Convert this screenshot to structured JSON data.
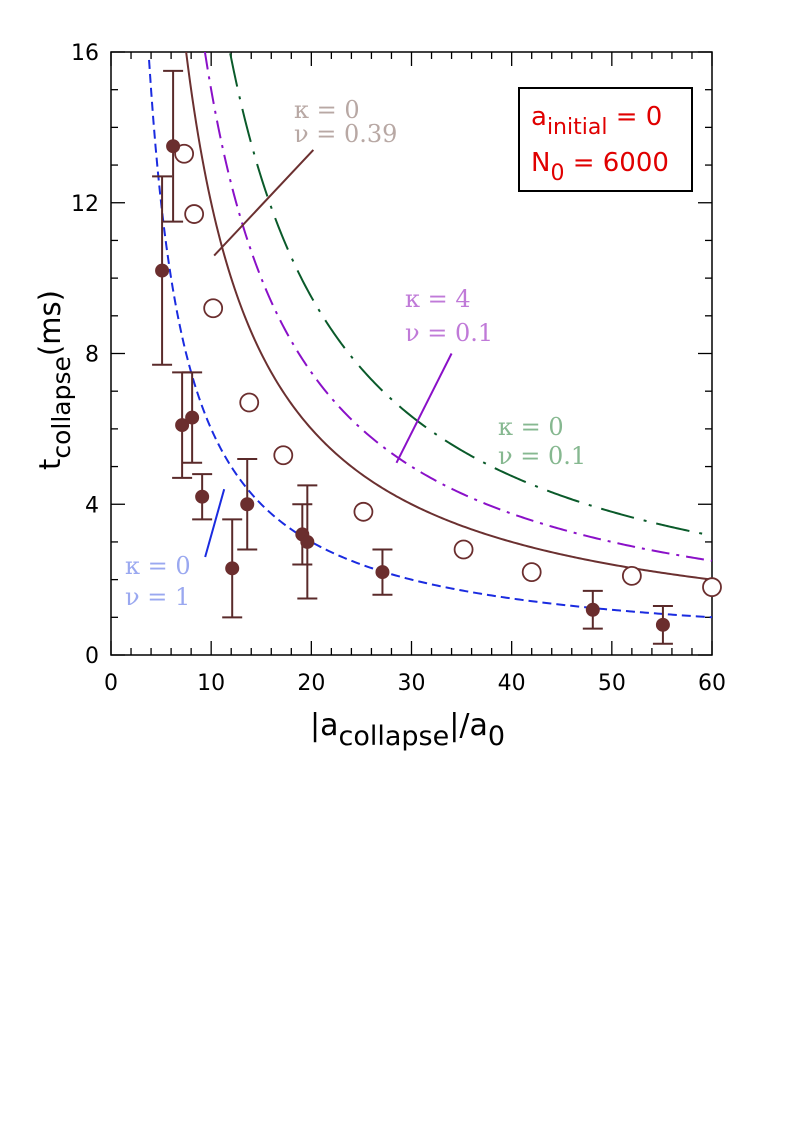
{
  "chart_data": {
    "type": "scatter",
    "xlabel": "|a_collapse|/a_0",
    "ylabel": "t_collapse(ms)",
    "xlim": [
      0,
      60
    ],
    "ylim": [
      0,
      16
    ],
    "x_ticks": [
      0,
      10,
      20,
      30,
      40,
      50,
      60
    ],
    "y_ticks": [
      0,
      4,
      8,
      12,
      16
    ],
    "legend": {
      "line1_base": "a",
      "line1_sub": "initial",
      "line1_rest": " = 0",
      "line2_base": "N",
      "line2_sub": "0",
      "line2_rest": " = 6000"
    },
    "series": [
      {
        "name": "measured (filled, with error bars)",
        "marker": "filled-circle",
        "color": "#6b2e2e",
        "points": [
          {
            "x": 5.1,
            "y": 10.2,
            "lo": 7.7,
            "hi": 12.7
          },
          {
            "x": 6.2,
            "y": 13.5,
            "lo": 11.5,
            "hi": 15.5
          },
          {
            "x": 7.1,
            "y": 6.1,
            "lo": 4.7,
            "hi": 7.5
          },
          {
            "x": 8.1,
            "y": 6.3,
            "lo": 5.1,
            "hi": 7.5
          },
          {
            "x": 9.1,
            "y": 4.2,
            "lo": 3.6,
            "hi": 4.8
          },
          {
            "x": 12.1,
            "y": 2.3,
            "lo": 1.0,
            "hi": 3.6
          },
          {
            "x": 13.6,
            "y": 4.0,
            "lo": 2.8,
            "hi": 5.2
          },
          {
            "x": 19.1,
            "y": 3.2,
            "lo": 2.4,
            "hi": 4.0
          },
          {
            "x": 19.6,
            "y": 3.0,
            "lo": 1.5,
            "hi": 4.5
          },
          {
            "x": 27.1,
            "y": 2.2,
            "lo": 1.6,
            "hi": 2.8
          },
          {
            "x": 48.1,
            "y": 1.2,
            "lo": 0.7,
            "hi": 1.7
          },
          {
            "x": 55.1,
            "y": 0.8,
            "lo": 0.3,
            "hi": 1.3
          }
        ]
      },
      {
        "name": "open circles",
        "marker": "open-circle",
        "color": "#6b2e2e",
        "points": [
          {
            "x": 7.3,
            "y": 13.3
          },
          {
            "x": 8.3,
            "y": 11.7
          },
          {
            "x": 10.2,
            "y": 9.2
          },
          {
            "x": 13.8,
            "y": 6.7
          },
          {
            "x": 17.2,
            "y": 5.3
          },
          {
            "x": 25.2,
            "y": 3.8
          },
          {
            "x": 35.2,
            "y": 2.8
          },
          {
            "x": 42.0,
            "y": 2.2
          },
          {
            "x": 52.0,
            "y": 2.1
          },
          {
            "x": 60.0,
            "y": 1.8
          }
        ]
      }
    ],
    "curves": [
      {
        "name": "kappa0_nu1",
        "style": "dashed",
        "color": "#1a2be0",
        "k": 60,
        "x_from": 3.8,
        "x_to": 60
      },
      {
        "name": "kappa0_nu039",
        "style": "solid",
        "color": "#6b3030",
        "k": 120,
        "x_from": 7.5,
        "x_to": 60
      },
      {
        "name": "kappa4_nu01",
        "style": "dashdot",
        "color": "#8a10c8",
        "k": 150,
        "x_from": 9.37,
        "x_to": 60
      },
      {
        "name": "kappa0_nu01",
        "style": "dashdotlong",
        "color": "#0a5a2a",
        "k": 190,
        "x_from": 11.9,
        "x_to": 60
      }
    ],
    "annotations": [
      {
        "id": "kappa0_nu039",
        "color": "#b8a8a4",
        "kappa": "κ  =  0",
        "nu": "ν  =  0.39"
      },
      {
        "id": "kappa4_nu01",
        "color": "#c07ad8",
        "kappa": "κ  =  4",
        "nu": "ν  =  0.1"
      },
      {
        "id": "kappa0_nu01",
        "color": "#86b890",
        "kappa": "κ  =  0",
        "nu": "ν  =  0.1"
      },
      {
        "id": "kappa0_nu1",
        "color": "#9aa8f0",
        "kappa": "κ  =  0",
        "nu": "ν  =  1"
      }
    ]
  }
}
